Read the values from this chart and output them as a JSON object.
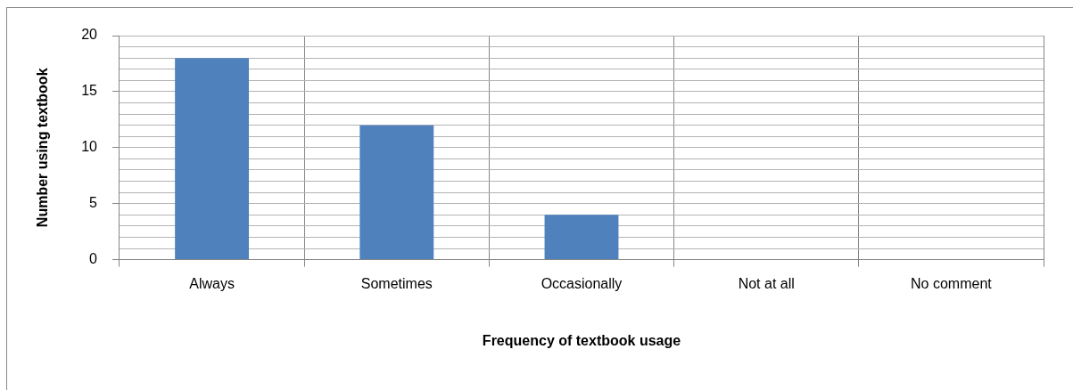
{
  "chart_data": {
    "type": "bar",
    "categories": [
      "Always",
      "Sometimes",
      "Occasionally",
      "Not at all",
      "No comment"
    ],
    "values": [
      18,
      12,
      4,
      0,
      0
    ],
    "color": "#4f81bd",
    "xlabel": "Frequency of textbook usage",
    "ylabel": "Number using textbook",
    "ylim": [
      0,
      20
    ],
    "yticks": [
      0,
      {
        "value": 1,
        "label": null
      },
      {
        "value": 2,
        "label": null
      },
      {
        "value": 3,
        "label": null
      },
      {
        "value": 4,
        "label": null
      },
      5,
      {
        "value": 6,
        "label": null
      },
      {
        "value": 7,
        "label": null
      },
      {
        "value": 8,
        "label": null
      },
      {
        "value": 9,
        "label": null
      },
      10,
      {
        "value": 11,
        "label": null
      },
      {
        "value": 12,
        "label": null
      },
      {
        "value": 13,
        "label": null
      },
      {
        "value": 14,
        "label": null
      },
      15,
      {
        "value": 16,
        "label": null
      },
      {
        "value": 17,
        "label": null
      },
      {
        "value": 18,
        "label": null
      },
      {
        "value": 19,
        "label": null
      },
      20
    ],
    "grid": true
  }
}
